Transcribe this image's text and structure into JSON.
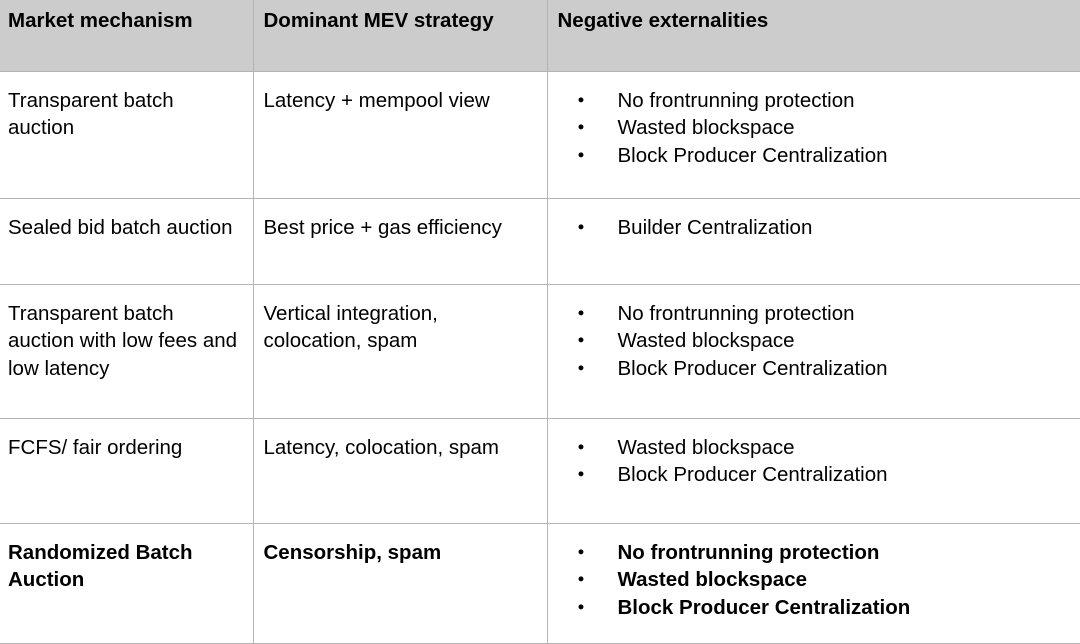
{
  "table": {
    "bullet_glyph": "●",
    "colors": {
      "header_bg": "#cccccc",
      "border": "#b3b3b3",
      "text": "#000000"
    },
    "columns": [
      "Market mechanism",
      "Dominant MEV strategy",
      "Negative externalities"
    ],
    "rows": [
      {
        "mechanism": "Transparent batch auction",
        "strategy": "Latency + mempool view",
        "externalities": [
          "No frontrunning protection",
          "Wasted blockspace",
          "Block Producer Centralization"
        ]
      },
      {
        "mechanism": "Sealed bid batch auction",
        "strategy": "Best price + gas efficiency",
        "externalities": [
          "Builder Centralization"
        ]
      },
      {
        "mechanism": "Transparent batch auction with low fees and low latency",
        "strategy": "Vertical integration, colocation, spam",
        "externalities": [
          "No frontrunning protection",
          "Wasted blockspace",
          "Block Producer Centralization"
        ]
      },
      {
        "mechanism": "FCFS/ fair ordering",
        "strategy": "Latency, colocation, spam",
        "externalities": [
          "Wasted blockspace",
          "Block Producer Centralization"
        ]
      },
      {
        "mechanism": "Randomized Batch Auction",
        "strategy": "Censorship, spam",
        "externalities": [
          "No frontrunning protection",
          "Wasted blockspace",
          "Block Producer Centralization"
        ],
        "emphasis": true
      }
    ]
  }
}
